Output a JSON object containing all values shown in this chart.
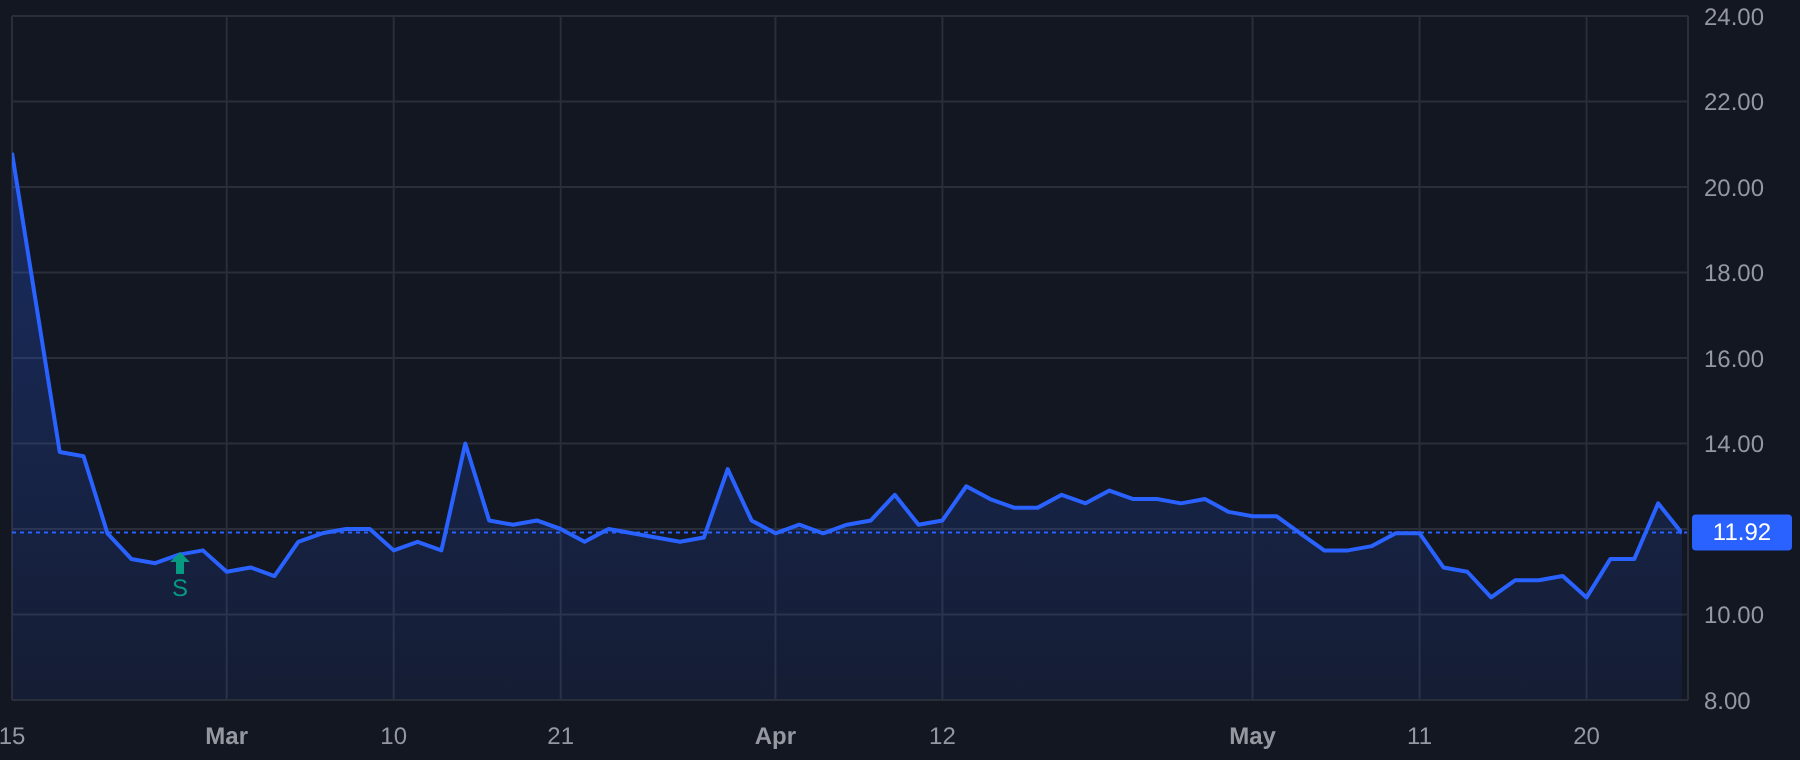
{
  "chart_data": {
    "type": "area",
    "categories": [
      "15",
      null,
      null,
      null,
      null,
      null,
      null,
      null,
      null,
      "Mar",
      null,
      null,
      null,
      null,
      null,
      null,
      "10",
      null,
      null,
      null,
      null,
      null,
      null,
      "21",
      null,
      null,
      null,
      null,
      null,
      null,
      null,
      null,
      "Apr",
      null,
      null,
      null,
      null,
      null,
      null,
      "12",
      null,
      null,
      null,
      null,
      null,
      null,
      null,
      null,
      null,
      null,
      null,
      null,
      "May",
      null,
      null,
      null,
      null,
      null,
      null,
      "11",
      null,
      null,
      null,
      null,
      null,
      null,
      "20",
      null,
      null,
      null,
      null
    ],
    "series": [
      {
        "color": "#2962ff",
        "values": [
          20.8,
          17.3,
          13.8,
          13.7,
          11.9,
          11.3,
          11.2,
          11.4,
          11.5,
          11.0,
          11.1,
          10.9,
          11.7,
          11.9,
          12.0,
          12.0,
          11.5,
          11.7,
          11.5,
          14.0,
          12.2,
          12.1,
          12.2,
          12.0,
          11.7,
          12.0,
          11.9,
          11.8,
          11.7,
          11.8,
          13.4,
          12.2,
          11.9,
          12.1,
          11.9,
          12.1,
          12.2,
          12.8,
          12.1,
          12.2,
          13.0,
          12.7,
          12.5,
          12.5,
          12.8,
          12.6,
          12.9,
          12.7,
          12.7,
          12.6,
          12.7,
          12.4,
          12.3,
          12.3,
          11.9,
          11.5,
          11.5,
          11.6,
          11.9,
          11.9,
          11.1,
          11.0,
          10.4,
          10.8,
          10.8,
          10.9,
          10.4,
          11.3,
          11.3,
          12.6,
          11.9
        ]
      }
    ],
    "ylim": [
      8,
      24
    ],
    "yticks": [
      {
        "value": 8,
        "label": "8.00"
      },
      {
        "value": 10,
        "label": "10.00"
      },
      {
        "value": 12,
        "label": null
      },
      {
        "value": 14,
        "label": "14.00"
      },
      {
        "value": 16,
        "label": "16.00"
      },
      {
        "value": 18,
        "label": "18.00"
      },
      {
        "value": 20,
        "label": "20.00"
      },
      {
        "value": 22,
        "label": "22.00"
      },
      {
        "value": 24,
        "label": "24.00"
      }
    ],
    "ref_lines": [
      {
        "axis": "y",
        "value": 11.92,
        "label": "11.92",
        "color": "#2962ff",
        "line_style": "dotted"
      }
    ],
    "annotations": [
      "S"
    ],
    "grid": true,
    "marker": "none",
    "line_style": "solid"
  }
}
